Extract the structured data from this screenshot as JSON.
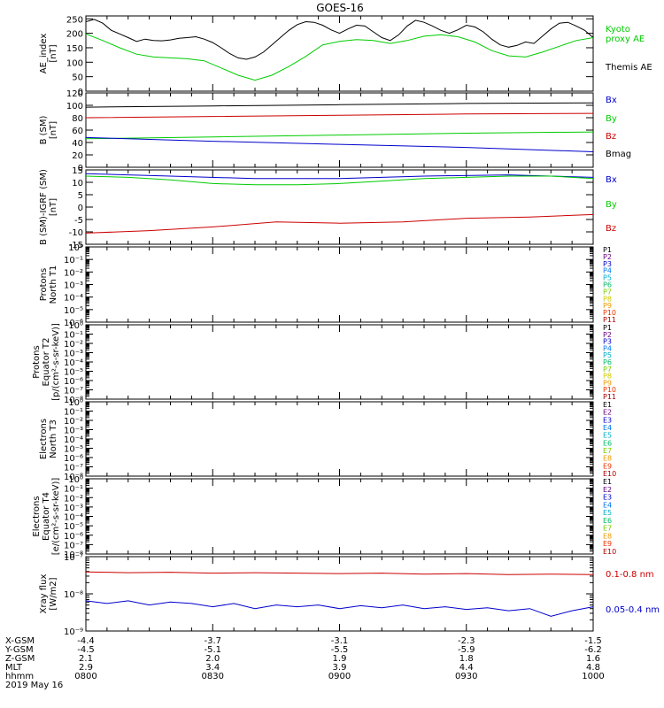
{
  "title": "GOES-16",
  "panels": [
    {
      "id": "ae",
      "ylabel": [
        "AE_index",
        "[nT]"
      ],
      "scale": "linear",
      "ylim": [
        0,
        260
      ],
      "ticks": [
        0,
        50,
        100,
        150,
        200,
        250
      ],
      "tick_labels": [
        "0",
        "50",
        "100",
        "150",
        "200",
        "250"
      ],
      "legend": [
        {
          "text": "Kyoto",
          "color": "#00cc00"
        },
        {
          "text": "proxy AE",
          "color": "#00cc00"
        },
        {
          "text": "Themis AE",
          "color": "#000000"
        }
      ]
    },
    {
      "id": "b_sm",
      "ylabel": [
        "B (SM)",
        "[nT]"
      ],
      "scale": "linear",
      "ylim": [
        0,
        120
      ],
      "ticks": [
        0,
        20,
        40,
        60,
        80,
        100,
        120
      ],
      "tick_labels": [
        "0",
        "20",
        "40",
        "60",
        "80",
        "100",
        "120"
      ],
      "legend": [
        {
          "text": "Bx",
          "color": "#0000cc"
        },
        {
          "text": "By",
          "color": "#00cc00"
        },
        {
          "text": "Bz",
          "color": "#cc0000"
        },
        {
          "text": "Bmag",
          "color": "#000000"
        }
      ]
    },
    {
      "id": "b_igrf",
      "ylabel": [
        "B (SM)-IGRF (SM)",
        "[nT]"
      ],
      "scale": "linear",
      "ylim": [
        -15,
        15
      ],
      "ticks": [
        -15,
        -10,
        -5,
        0,
        5,
        10,
        15
      ],
      "tick_labels": [
        "-15",
        "-10",
        "-5",
        "0",
        "5",
        "10",
        "15"
      ],
      "legend": [
        {
          "text": "Bx",
          "color": "#0000cc"
        },
        {
          "text": "By",
          "color": "#00cc00"
        },
        {
          "text": "Bz",
          "color": "#cc0000"
        }
      ]
    },
    {
      "id": "protons_t1",
      "ylabel": [
        "Protons",
        "North T1"
      ],
      "scale": "log",
      "decades": [
        -6,
        0
      ],
      "tick_labels": [
        "10⁻⁶",
        "10⁻⁵",
        "10⁻⁴",
        "10⁻³",
        "10⁻²",
        "10⁻¹",
        "10⁰"
      ],
      "legend": [
        {
          "text": "P1",
          "color": "#000000"
        },
        {
          "text": "P2",
          "color": "#6a0080"
        },
        {
          "text": "P3",
          "color": "#0000cc"
        },
        {
          "text": "P4",
          "color": "#0077ee"
        },
        {
          "text": "P5",
          "color": "#00aacc"
        },
        {
          "text": "P6",
          "color": "#00bb66"
        },
        {
          "text": "P7",
          "color": "#77cc00"
        },
        {
          "text": "P8",
          "color": "#cccc00"
        },
        {
          "text": "P9",
          "color": "#ee9900"
        },
        {
          "text": "P10",
          "color": "#ee3300"
        },
        {
          "text": "P11",
          "color": "#aa0000"
        }
      ]
    },
    {
      "id": "protons_t2",
      "ylabel": [
        "Protons",
        "Equator T2",
        "[p/(cm²-s-sr-keV)]"
      ],
      "scale": "log",
      "decades": [
        -8,
        0
      ],
      "tick_labels": [
        "10⁻⁸",
        "10⁻⁷",
        "10⁻⁶",
        "10⁻⁵",
        "10⁻⁴",
        "10⁻³",
        "10⁻²",
        "10⁻¹",
        "10⁰"
      ],
      "legend": [
        {
          "text": "P1",
          "color": "#000000"
        },
        {
          "text": "P2",
          "color": "#6a0080"
        },
        {
          "text": "P3",
          "color": "#0000cc"
        },
        {
          "text": "P4",
          "color": "#0077ee"
        },
        {
          "text": "P5",
          "color": "#00aacc"
        },
        {
          "text": "P6",
          "color": "#00bb66"
        },
        {
          "text": "P7",
          "color": "#77cc00"
        },
        {
          "text": "P8",
          "color": "#cccc00"
        },
        {
          "text": "P9",
          "color": "#ee9900"
        },
        {
          "text": "P10",
          "color": "#ee3300"
        },
        {
          "text": "P11",
          "color": "#aa0000"
        }
      ]
    },
    {
      "id": "electrons_t3",
      "ylabel": [
        "Electrons",
        "North T3"
      ],
      "scale": "log",
      "decades": [
        -8,
        0
      ],
      "tick_labels": [
        "10⁻⁸",
        "10⁻⁷",
        "10⁻⁶",
        "10⁻⁵",
        "10⁻⁴",
        "10⁻³",
        "10⁻²",
        "10⁻¹",
        "10⁰"
      ],
      "legend": [
        {
          "text": "E1",
          "color": "#000000"
        },
        {
          "text": "E2",
          "color": "#6a0080"
        },
        {
          "text": "E3",
          "color": "#0000cc"
        },
        {
          "text": "E4",
          "color": "#0077ee"
        },
        {
          "text": "E5",
          "color": "#00aacc"
        },
        {
          "text": "E6",
          "color": "#00bb66"
        },
        {
          "text": "E7",
          "color": "#77cc00"
        },
        {
          "text": "E8",
          "color": "#ee9900"
        },
        {
          "text": "E9",
          "color": "#ee3300"
        },
        {
          "text": "E10",
          "color": "#aa0000"
        }
      ]
    },
    {
      "id": "electrons_t4",
      "ylabel": [
        "Electrons",
        "Equator T4",
        "[e/(cm²-s-sr-keV)]"
      ],
      "scale": "log",
      "decades": [
        -8,
        0
      ],
      "tick_labels": [
        "10⁻⁸",
        "10⁻⁷",
        "10⁻⁶",
        "10⁻⁵",
        "10⁻⁴",
        "10⁻³",
        "10⁻²",
        "10⁻¹",
        "10⁰"
      ],
      "legend": [
        {
          "text": "E1",
          "color": "#000000"
        },
        {
          "text": "E2",
          "color": "#6a0080"
        },
        {
          "text": "E3",
          "color": "#0000cc"
        },
        {
          "text": "E4",
          "color": "#0077ee"
        },
        {
          "text": "E5",
          "color": "#00aacc"
        },
        {
          "text": "E6",
          "color": "#00bb66"
        },
        {
          "text": "E7",
          "color": "#77cc00"
        },
        {
          "text": "E8",
          "color": "#ee9900"
        },
        {
          "text": "E9",
          "color": "#ee3300"
        },
        {
          "text": "E10",
          "color": "#aa0000"
        }
      ]
    },
    {
      "id": "xray",
      "ylabel": [
        "Xray flux",
        "[W/m2]"
      ],
      "scale": "log",
      "decades": [
        -9,
        -7
      ],
      "tick_labels": [
        "10⁻⁹",
        "10⁻⁸",
        "10⁻⁷"
      ],
      "legend": [
        {
          "text": "0.1-0.8 nm",
          "color": "#cc0000"
        },
        {
          "text": "0.05-0.4 nm",
          "color": "#0000cc"
        }
      ]
    }
  ],
  "chart_data": {
    "type": "line",
    "x_range": [
      "0800",
      "1000"
    ],
    "x_ticks": [
      "0800",
      "0830",
      "0900",
      "0930",
      "1000"
    ],
    "ephemeris": [
      {
        "label": "X-GSM",
        "values": [
          "-4.4",
          "-3.7",
          "-3.1",
          "-2.3",
          "-1.5"
        ]
      },
      {
        "label": "Y-GSM",
        "values": [
          "-4.5",
          "-5.1",
          "-5.5",
          "-5.9",
          "-6.2"
        ]
      },
      {
        "label": "Z-GSM",
        "values": [
          "2.1",
          "2.0",
          "1.9",
          "1.8",
          "1.6"
        ]
      },
      {
        "label": "MLT",
        "values": [
          "2.9",
          "3.4",
          "3.9",
          "4.4",
          "4.8"
        ]
      },
      {
        "label": "hhmm",
        "values": [
          "0800",
          "0830",
          "0900",
          "0930",
          "1000"
        ]
      }
    ],
    "date": "2019 May 16",
    "series": [
      {
        "panel": "ae",
        "name": "Themis AE",
        "color": "#000000",
        "x": [
          0,
          2,
          4,
          6,
          8,
          10,
          12,
          14,
          16,
          18,
          20,
          22,
          24,
          26,
          28,
          30,
          32,
          34,
          36,
          38,
          40,
          42,
          44,
          46,
          48,
          50,
          52,
          54,
          56,
          58,
          60,
          62,
          64,
          66,
          68,
          70,
          72,
          74,
          76,
          78,
          80,
          82,
          84,
          86,
          88,
          90,
          92,
          94,
          96,
          98,
          100,
          102,
          104,
          106,
          108,
          110,
          112,
          114,
          116,
          118,
          120
        ],
        "y": [
          240,
          248,
          235,
          210,
          198,
          185,
          172,
          180,
          175,
          174,
          177,
          183,
          185,
          188,
          180,
          168,
          150,
          130,
          115,
          110,
          118,
          135,
          160,
          185,
          210,
          230,
          240,
          238,
          228,
          212,
          200,
          215,
          228,
          225,
          205,
          185,
          175,
          195,
          225,
          245,
          238,
          225,
          210,
          200,
          212,
          228,
          222,
          205,
          180,
          160,
          152,
          158,
          170,
          165,
          190,
          215,
          235,
          238,
          225,
          210,
          185
        ]
      },
      {
        "panel": "ae",
        "name": "Kyoto proxy AE",
        "color": "#00cc00",
        "x": [
          0,
          4,
          8,
          12,
          16,
          20,
          24,
          28,
          32,
          36,
          40,
          44,
          48,
          52,
          56,
          60,
          64,
          68,
          72,
          76,
          80,
          84,
          88,
          92,
          96,
          100,
          104,
          108,
          112,
          116,
          120
        ],
        "y": [
          198,
          175,
          150,
          128,
          118,
          115,
          112,
          105,
          80,
          55,
          38,
          55,
          85,
          120,
          160,
          172,
          178,
          175,
          165,
          175,
          190,
          195,
          188,
          170,
          140,
          122,
          118,
          135,
          155,
          175,
          185
        ]
      },
      {
        "panel": "b_sm",
        "name": "Bmag",
        "color": "#000000",
        "x": [
          0,
          30,
          60,
          90,
          120
        ],
        "y": [
          97,
          99,
          101,
          103,
          104
        ]
      },
      {
        "panel": "b_sm",
        "name": "Bz",
        "color": "#cc0000",
        "x": [
          0,
          30,
          60,
          90,
          120
        ],
        "y": [
          80,
          82,
          84,
          86,
          87
        ]
      },
      {
        "panel": "b_sm",
        "name": "By",
        "color": "#00cc00",
        "x": [
          0,
          30,
          60,
          90,
          120
        ],
        "y": [
          46,
          49,
          52,
          55,
          57
        ]
      },
      {
        "panel": "b_sm",
        "name": "Bx",
        "color": "#0000cc",
        "x": [
          0,
          30,
          60,
          90,
          120
        ],
        "y": [
          48,
          42,
          37,
          32,
          25
        ]
      },
      {
        "panel": "b_igrf",
        "name": "Bx",
        "color": "#0000cc",
        "x": [
          0,
          20,
          40,
          60,
          80,
          100,
          120
        ],
        "y": [
          13.5,
          12.5,
          11.5,
          11.5,
          12.5,
          13,
          12
        ]
      },
      {
        "panel": "b_igrf",
        "name": "By",
        "color": "#00cc00",
        "x": [
          0,
          10,
          20,
          30,
          40,
          50,
          60,
          70,
          80,
          90,
          100,
          110,
          120
        ],
        "y": [
          12.5,
          12,
          11,
          9.5,
          9,
          9,
          9.5,
          10.5,
          11.5,
          12,
          12.5,
          12.5,
          11.5
        ]
      },
      {
        "panel": "b_igrf",
        "name": "Bz",
        "color": "#cc0000",
        "x": [
          0,
          15,
          30,
          45,
          60,
          75,
          90,
          105,
          120
        ],
        "y": [
          -10.5,
          -9.5,
          -8,
          -6,
          -6.5,
          -6,
          -4.5,
          -4,
          -3
        ]
      },
      {
        "panel": "xray",
        "name": "0.1-0.8 nm",
        "color": "#cc0000",
        "x": [
          0,
          10,
          20,
          30,
          40,
          50,
          60,
          70,
          80,
          90,
          100,
          110,
          120
        ],
        "y": [
          3.9e-08,
          3.7e-08,
          3.8e-08,
          3.6e-08,
          3.7e-08,
          3.6e-08,
          3.5e-08,
          3.6e-08,
          3.4e-08,
          3.5e-08,
          3.3e-08,
          3.4e-08,
          3.3e-08
        ]
      },
      {
        "panel": "xray",
        "name": "0.05-0.4 nm",
        "color": "#0000cc",
        "x": [
          0,
          5,
          10,
          15,
          20,
          25,
          30,
          35,
          40,
          45,
          50,
          55,
          60,
          65,
          70,
          75,
          80,
          85,
          90,
          95,
          100,
          105,
          110,
          115,
          120
        ],
        "y": [
          6.5e-09,
          5.5e-09,
          6.5e-09,
          5e-09,
          6e-09,
          5.5e-09,
          4.5e-09,
          5.5e-09,
          4e-09,
          5e-09,
          4.5e-09,
          5e-09,
          4e-09,
          4.8e-09,
          4.2e-09,
          5e-09,
          4e-09,
          4.5e-09,
          3.8e-09,
          4.2e-09,
          3.5e-09,
          4e-09,
          2.5e-09,
          3.5e-09,
          4.5e-09
        ]
      }
    ]
  }
}
